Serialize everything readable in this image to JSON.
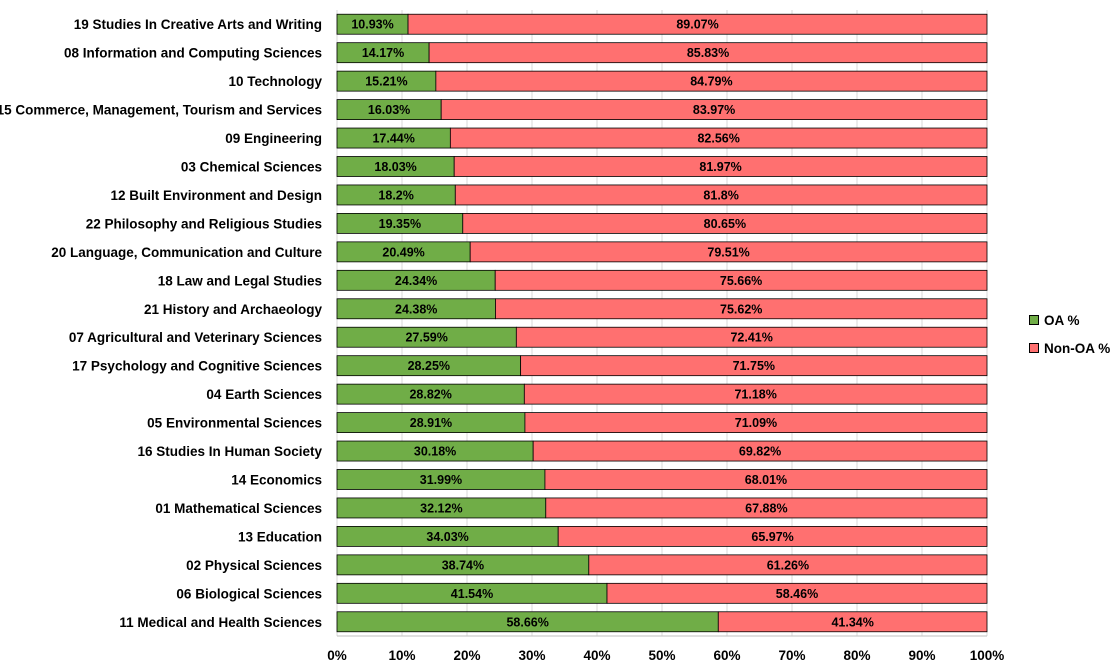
{
  "chart_data": {
    "type": "bar",
    "orientation": "horizontal",
    "stacked": "percent",
    "categories": [
      "19 Studies In Creative Arts and Writing",
      "08 Information and Computing Sciences",
      "10 Technology",
      "15 Commerce, Management, Tourism and Services",
      "09 Engineering",
      "03 Chemical Sciences",
      "12 Built Environment and Design",
      "22 Philosophy and Religious Studies",
      "20 Language, Communication and Culture",
      "18 Law and Legal Studies",
      "21 History and Archaeology",
      "07 Agricultural and Veterinary Sciences",
      "17 Psychology and Cognitive Sciences",
      "04 Earth Sciences",
      "05 Environmental Sciences",
      "16 Studies In Human Society",
      "14 Economics",
      "01 Mathematical Sciences",
      "13 Education",
      "02 Physical Sciences",
      "06 Biological Sciences",
      "11 Medical and Health Sciences"
    ],
    "series": [
      {
        "name": "OA %",
        "color": "#70ad47",
        "values": [
          10.93,
          14.17,
          15.21,
          16.03,
          17.44,
          18.03,
          18.2,
          19.35,
          20.49,
          24.34,
          24.38,
          27.59,
          28.25,
          28.82,
          28.91,
          30.18,
          31.99,
          32.12,
          34.03,
          38.74,
          41.54,
          58.66
        ],
        "labels": [
          "10.93%",
          "14.17%",
          "15.21%",
          "16.03%",
          "17.44%",
          "18.03%",
          "18.2%",
          "19.35%",
          "20.49%",
          "24.34%",
          "24.38%",
          "27.59%",
          "28.25%",
          "28.82%",
          "28.91%",
          "30.18%",
          "31.99%",
          "32.12%",
          "34.03%",
          "38.74%",
          "41.54%",
          "58.66%"
        ]
      },
      {
        "name": "Non-OA %",
        "color": "#ff7070",
        "values": [
          89.07,
          85.83,
          84.79,
          83.97,
          82.56,
          81.97,
          81.8,
          80.65,
          79.51,
          75.66,
          75.62,
          72.41,
          71.75,
          71.18,
          71.09,
          69.82,
          68.01,
          67.88,
          65.97,
          61.26,
          58.46,
          41.34
        ],
        "labels": [
          "89.07%",
          "85.83%",
          "84.79%",
          "83.97%",
          "82.56%",
          "81.97%",
          "81.8%",
          "80.65%",
          "79.51%",
          "75.66%",
          "75.62%",
          "72.41%",
          "71.75%",
          "71.18%",
          "71.09%",
          "69.82%",
          "68.01%",
          "67.88%",
          "65.97%",
          "61.26%",
          "58.46%",
          "41.34%"
        ]
      }
    ],
    "xlim": [
      0,
      100
    ],
    "xticks": [
      0,
      10,
      20,
      30,
      40,
      50,
      60,
      70,
      80,
      90,
      100
    ],
    "xtick_labels": [
      "0%",
      "10%",
      "20%",
      "30%",
      "40%",
      "50%",
      "60%",
      "70%",
      "80%",
      "90%",
      "100%"
    ],
    "grid": "vertical",
    "legend_position": "right",
    "title": "",
    "xlabel": "",
    "ylabel": ""
  }
}
